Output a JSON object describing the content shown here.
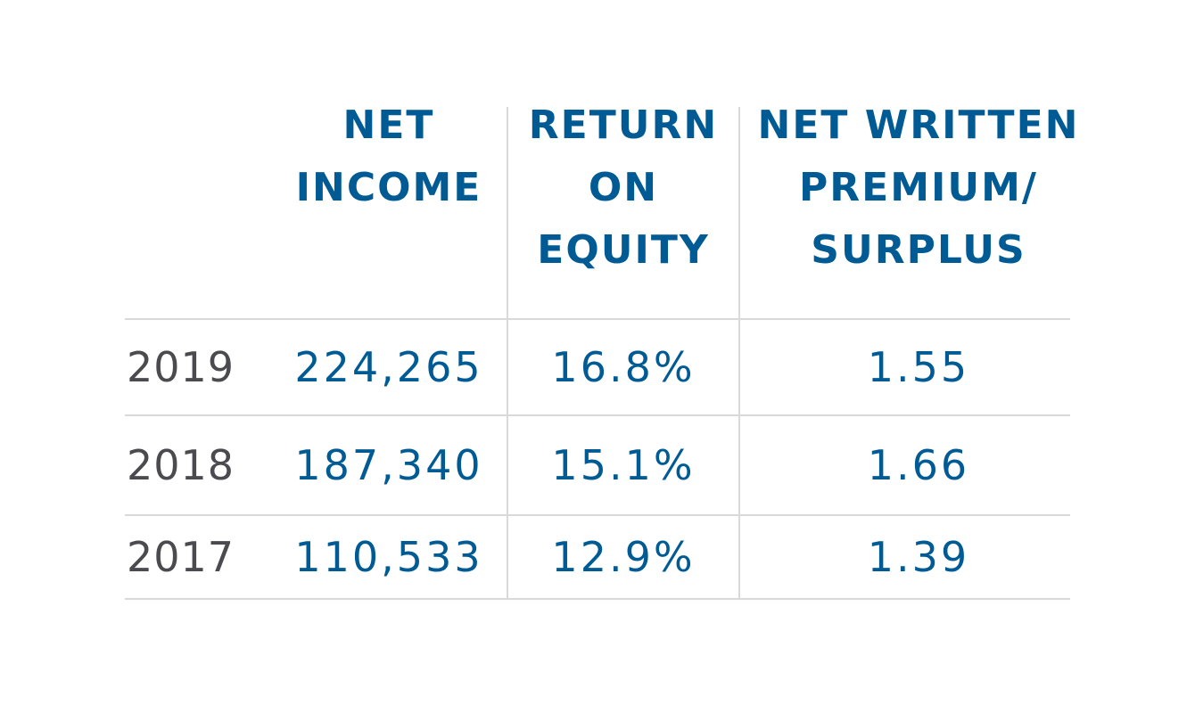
{
  "chart_data": {
    "type": "table",
    "columns": [
      {
        "lines": [
          "NET",
          "INCOME"
        ]
      },
      {
        "lines": [
          "RETURN",
          "ON",
          "EQUITY"
        ]
      },
      {
        "lines": [
          "NET WRITTEN",
          "PREMIUM/",
          "SURPLUS"
        ]
      }
    ],
    "rows": [
      {
        "year": "2019",
        "values": [
          "224,265",
          "16.8%",
          "1.55"
        ]
      },
      {
        "year": "2018",
        "values": [
          "187,340",
          "15.1%",
          "1.66"
        ]
      },
      {
        "year": "2017",
        "values": [
          "110,533",
          "12.9%",
          "1.39"
        ]
      }
    ]
  },
  "colors": {
    "accent": "#005b94",
    "year_text": "#4a4a4f",
    "rule": "#d9d9d9",
    "background": "#ffffff"
  }
}
